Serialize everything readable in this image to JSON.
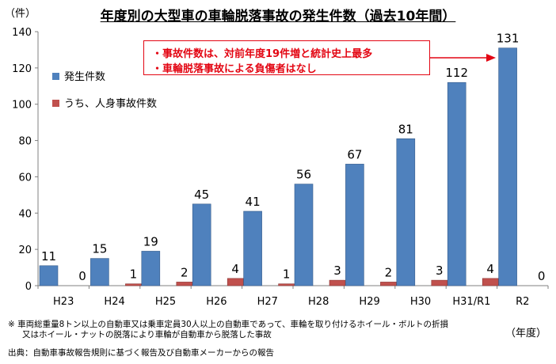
{
  "chart_data": {
    "type": "bar",
    "title": "年度別の大型車の車輪脱落事故の発生件数（過去10年間）",
    "ylabel_unit": "（件）",
    "xlabel_unit": "（年度）",
    "categories": [
      "H23",
      "H24",
      "H25",
      "H26",
      "H27",
      "H28",
      "H29",
      "H30",
      "H31/R1",
      "R2"
    ],
    "series": [
      {
        "name": "発生件数",
        "color": "#4f81bd",
        "values": [
          11,
          15,
          19,
          45,
          41,
          56,
          67,
          81,
          112,
          131
        ]
      },
      {
        "name": "うち、人身事故件数",
        "color": "#c0504d",
        "values": [
          0,
          1,
          2,
          4,
          1,
          3,
          2,
          3,
          4,
          0
        ]
      }
    ],
    "ylim": [
      0,
      140
    ],
    "yticks": [
      0,
      20,
      40,
      60,
      80,
      100,
      120,
      140
    ],
    "grid": false,
    "legend_position": "top-left",
    "annotations": [
      "・事故件数は、対前年度19件増と統計史上最多",
      "・車輪脱落事故による負傷者はなし"
    ]
  },
  "notes": {
    "note_line1": "※ 車両総重量8トン以上の自動車又は乗車定員30人以上の自動車であって、車輪を取り付けるホイール・ボルトの折損",
    "note_line2": "又はホイール・ナットの脱落により車輪が自動車から脱落した事故",
    "source": "出典：自動車事故報告規則に基づく報告及び自動車メーカーからの報告"
  }
}
